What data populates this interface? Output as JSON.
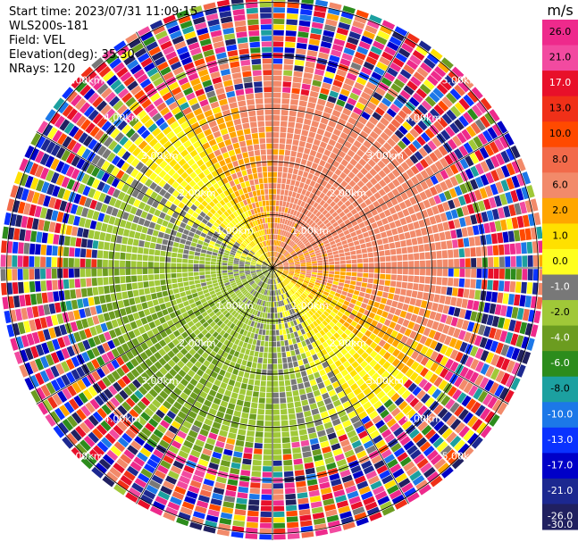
{
  "header": {
    "start_time": "Start time: 2023/07/31 11:09:15",
    "instrument": "WLS200s-181",
    "field": "Field: VEL",
    "elevation": "Elevation(deg): 35.30",
    "nrays": "NRays: 120"
  },
  "chart_data": {
    "type": "heatmap",
    "projection": "polar (PPI)",
    "field": "VEL",
    "n_rays": 120,
    "range_rings_km": [
      1.0,
      2.0,
      3.0,
      4.0,
      5.0
    ],
    "range_ring_labels": [
      "1.00km",
      "2.00km",
      "3.00km",
      "4.00km",
      "5.00km"
    ],
    "colorbar": {
      "unit": "m/s",
      "ticks": [
        "26.0",
        "21.0",
        "17.0",
        "13.0",
        "10.0",
        "8.0",
        "6.0",
        "2.0",
        "1.0",
        "0.0",
        "-1.0",
        "-2.0",
        "-4.0",
        "-6.0",
        "-8.0",
        "-10.0",
        "-13.0",
        "-17.0",
        "-21.0",
        "-26.0",
        "-30.0"
      ],
      "colors": [
        "#ee2a8c",
        "#f24aa0",
        "#e8102a",
        "#f03018",
        "#ff4a00",
        "#f26a4a",
        "#f28a6a",
        "#ffa600",
        "#ffe000",
        "#ffff20",
        "#787878",
        "#a0c838",
        "#6c9c20",
        "#2c8c1c",
        "#1ca0a0",
        "#1c78e8",
        "#0a32ff",
        "#0000c8",
        "#1c2890",
        "#202060"
      ]
    }
  }
}
